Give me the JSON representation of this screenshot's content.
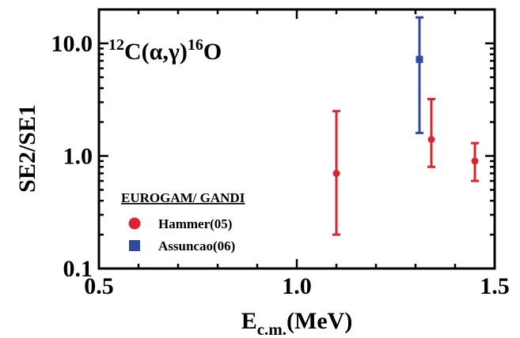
{
  "chart_data": {
    "type": "scatter",
    "title_parts": {
      "pre": "12",
      "mid": "C(α,γ)",
      "post": "16",
      "end": "O"
    },
    "xlabel_parts": {
      "main": "E",
      "sub": "c.m.",
      "unit": "(MeV)"
    },
    "ylabel": "SE2/SE1",
    "xlim": [
      0.5,
      1.5
    ],
    "ylim": [
      0.1,
      20
    ],
    "y_scale": "log",
    "x_ticks": [
      {
        "value": 0.5,
        "label": "0.5"
      },
      {
        "value": 1.0,
        "label": "1.0"
      },
      {
        "value": 1.5,
        "label": "1.5"
      }
    ],
    "y_ticks": [
      {
        "value": 0.1,
        "label": "0.1"
      },
      {
        "value": 1.0,
        "label": "1.0"
      },
      {
        "value": 10.0,
        "label": "10.0"
      }
    ],
    "grid": false,
    "legend_title": "EUROGAM/ GANDI",
    "legend_position": "bottom-left",
    "series": [
      {
        "name": "Hammer(05)",
        "marker": "circle",
        "color": "#d8252f",
        "points": [
          {
            "x": 1.1,
            "y": 0.7,
            "ylow": 0.2,
            "yhigh": 2.5
          },
          {
            "x": 1.34,
            "y": 1.4,
            "ylow": 0.8,
            "yhigh": 3.2
          },
          {
            "x": 1.45,
            "y": 0.9,
            "ylow": 0.6,
            "yhigh": 1.3
          }
        ]
      },
      {
        "name": "Assuncao(06)",
        "marker": "square",
        "color": "#2f4b9a",
        "points": [
          {
            "x": 1.31,
            "y": 7.2,
            "ylow": 1.6,
            "yhigh": 17.0
          }
        ]
      }
    ]
  }
}
